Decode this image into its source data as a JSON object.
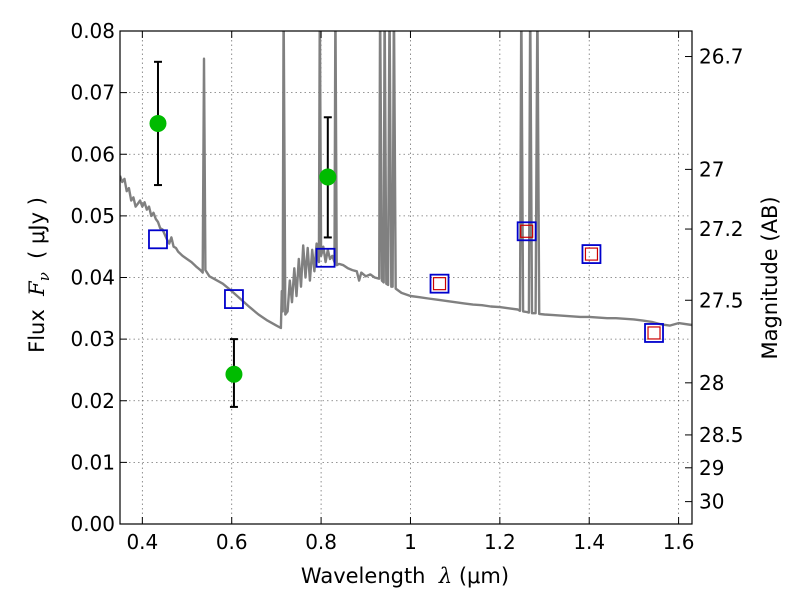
{
  "chart_data": {
    "type": "scatter",
    "xlabel_text": "Wavelength",
    "xlabel_symbol": "λ",
    "xlabel_unit": "(μm)",
    "ylabel_text": "Flux",
    "ylabel_symbol": "F",
    "ylabel_sub": "ν",
    "ylabel_unit": "( μJy )",
    "y2label": "Magnitude (AB)",
    "xlim": [
      0.35,
      1.63
    ],
    "ylim": [
      0.0,
      0.08
    ],
    "xticks": [
      0.4,
      0.6,
      0.8,
      1.0,
      1.2,
      1.4,
      1.6
    ],
    "xtick_labels": [
      "0.4",
      "0.6",
      "0.8",
      "1",
      "1.2",
      "1.4",
      "1.6"
    ],
    "yticks": [
      0.0,
      0.01,
      0.02,
      0.03,
      0.04,
      0.05,
      0.06,
      0.07,
      0.08
    ],
    "ytick_labels": [
      "0.00",
      "0.01",
      "0.02",
      "0.03",
      "0.04",
      "0.05",
      "0.06",
      "0.07",
      "0.08"
    ],
    "y2ticks": [
      26.7,
      27,
      27.2,
      27.5,
      28,
      28.5,
      29,
      30
    ],
    "y2tick_labels": [
      "26.7",
      "27",
      "27.2",
      "27.5",
      "28",
      "28.5",
      "29",
      "30"
    ],
    "grid": true,
    "colors": {
      "model": "#808080",
      "observed": "#00bb00",
      "model_phot_box": "#0000cc",
      "inner_box": "#cc0000",
      "errorbar": "#000000"
    },
    "series": [
      {
        "kind": "model_sed",
        "points": [
          [
            0.35,
            0.0565
          ],
          [
            0.355,
            0.0555
          ],
          [
            0.36,
            0.056
          ],
          [
            0.365,
            0.054
          ],
          [
            0.37,
            0.0545
          ],
          [
            0.375,
            0.0525
          ],
          [
            0.38,
            0.053
          ],
          [
            0.385,
            0.0515
          ],
          [
            0.39,
            0.052
          ],
          [
            0.395,
            0.0525
          ],
          [
            0.4,
            0.0515
          ],
          [
            0.405,
            0.0522
          ],
          [
            0.41,
            0.051
          ],
          [
            0.415,
            0.0515
          ],
          [
            0.42,
            0.05
          ],
          [
            0.425,
            0.0505
          ],
          [
            0.43,
            0.0495
          ],
          [
            0.435,
            0.049
          ],
          [
            0.44,
            0.048
          ],
          [
            0.445,
            0.0478
          ],
          [
            0.45,
            0.047
          ],
          [
            0.455,
            0.0462
          ],
          [
            0.46,
            0.0455
          ],
          [
            0.465,
            0.0465
          ],
          [
            0.47,
            0.045
          ],
          [
            0.475,
            0.0448
          ],
          [
            0.48,
            0.0442
          ],
          [
            0.49,
            0.0435
          ],
          [
            0.5,
            0.043
          ],
          [
            0.51,
            0.0425
          ],
          [
            0.52,
            0.0418
          ],
          [
            0.53,
            0.0412
          ],
          [
            0.535,
            0.0408
          ],
          [
            0.538,
            0.0755
          ],
          [
            0.541,
            0.0412
          ],
          [
            0.55,
            0.0402
          ],
          [
            0.56,
            0.0398
          ],
          [
            0.58,
            0.039
          ],
          [
            0.6,
            0.0378
          ],
          [
            0.62,
            0.0365
          ],
          [
            0.64,
            0.0352
          ],
          [
            0.66,
            0.034
          ],
          [
            0.68,
            0.033
          ],
          [
            0.7,
            0.0322
          ],
          [
            0.71,
            0.0318
          ],
          [
            0.712,
            0.0378
          ],
          [
            0.714,
            0.0345
          ],
          [
            0.716,
            0.085
          ],
          [
            0.72,
            0.034
          ],
          [
            0.725,
            0.0345
          ],
          [
            0.73,
            0.0395
          ],
          [
            0.735,
            0.036
          ],
          [
            0.74,
            0.0415
          ],
          [
            0.745,
            0.037
          ],
          [
            0.75,
            0.043
          ],
          [
            0.755,
            0.0385
          ],
          [
            0.76,
            0.0452
          ],
          [
            0.765,
            0.04
          ],
          [
            0.77,
            0.0448
          ],
          [
            0.775,
            0.0395
          ],
          [
            0.78,
            0.0445
          ],
          [
            0.785,
            0.041
          ],
          [
            0.79,
            0.0455
          ],
          [
            0.795,
            0.0425
          ],
          [
            0.797,
            0.085
          ],
          [
            0.8,
            0.0435
          ],
          [
            0.805,
            0.045
          ],
          [
            0.81,
            0.0425
          ],
          [
            0.815,
            0.0445
          ],
          [
            0.82,
            0.043
          ],
          [
            0.825,
            0.0435
          ],
          [
            0.83,
            0.0425
          ],
          [
            0.832,
            0.085
          ],
          [
            0.835,
            0.042
          ],
          [
            0.84,
            0.0422
          ],
          [
            0.85,
            0.042
          ],
          [
            0.86,
            0.0415
          ],
          [
            0.87,
            0.0412
          ],
          [
            0.88,
            0.041
          ],
          [
            0.885,
            0.0395
          ],
          [
            0.89,
            0.0408
          ],
          [
            0.9,
            0.0402
          ],
          [
            0.91,
            0.0405
          ],
          [
            0.92,
            0.04
          ],
          [
            0.93,
            0.0398
          ],
          [
            0.932,
            0.085
          ],
          [
            0.936,
            0.0395
          ],
          [
            0.94,
            0.0392
          ],
          [
            0.942,
            0.085
          ],
          [
            0.946,
            0.039
          ],
          [
            0.95,
            0.0388
          ],
          [
            0.953,
            0.085
          ],
          [
            0.957,
            0.0385
          ],
          [
            0.96,
            0.0385
          ],
          [
            0.963,
            0.085
          ],
          [
            0.967,
            0.0382
          ],
          [
            0.98,
            0.0375
          ],
          [
            1.0,
            0.037
          ],
          [
            1.02,
            0.0368
          ],
          [
            1.04,
            0.0366
          ],
          [
            1.06,
            0.0364
          ],
          [
            1.08,
            0.0362
          ],
          [
            1.1,
            0.036
          ],
          [
            1.12,
            0.0358
          ],
          [
            1.14,
            0.0356
          ],
          [
            1.16,
            0.0355
          ],
          [
            1.18,
            0.0353
          ],
          [
            1.2,
            0.0352
          ],
          [
            1.22,
            0.035
          ],
          [
            1.24,
            0.0348
          ],
          [
            1.245,
            0.0346
          ],
          [
            1.248,
            0.085
          ],
          [
            1.252,
            0.0345
          ],
          [
            1.26,
            0.0344
          ],
          [
            1.265,
            0.0343
          ],
          [
            1.268,
            0.085
          ],
          [
            1.272,
            0.0342
          ],
          [
            1.28,
            0.0342
          ],
          [
            1.284,
            0.085
          ],
          [
            1.288,
            0.0341
          ],
          [
            1.3,
            0.034
          ],
          [
            1.32,
            0.0339
          ],
          [
            1.34,
            0.0338
          ],
          [
            1.36,
            0.0337
          ],
          [
            1.38,
            0.0336
          ],
          [
            1.4,
            0.0336
          ],
          [
            1.42,
            0.0335
          ],
          [
            1.44,
            0.0334
          ],
          [
            1.46,
            0.0334
          ],
          [
            1.48,
            0.0333
          ],
          [
            1.5,
            0.0332
          ],
          [
            1.52,
            0.033
          ],
          [
            1.54,
            0.0328
          ],
          [
            1.56,
            0.0324
          ],
          [
            1.58,
            0.0322
          ],
          [
            1.6,
            0.0326
          ],
          [
            1.63,
            0.0323
          ]
        ]
      },
      {
        "kind": "model_photometry",
        "points": [
          [
            0.435,
            0.0462
          ],
          [
            0.605,
            0.0365
          ],
          [
            0.81,
            0.0432
          ],
          [
            1.065,
            0.039
          ],
          [
            1.26,
            0.0475
          ],
          [
            1.405,
            0.0438
          ],
          [
            1.545,
            0.031
          ]
        ],
        "inner": [
          false,
          false,
          false,
          true,
          true,
          true,
          true
        ]
      },
      {
        "kind": "observed",
        "points": [
          [
            0.435,
            0.065
          ],
          [
            0.605,
            0.0243
          ],
          [
            0.815,
            0.0563
          ]
        ],
        "yerr": [
          [
            0.055,
            0.075
          ],
          [
            0.019,
            0.03
          ],
          [
            0.0465,
            0.066
          ]
        ]
      }
    ]
  }
}
